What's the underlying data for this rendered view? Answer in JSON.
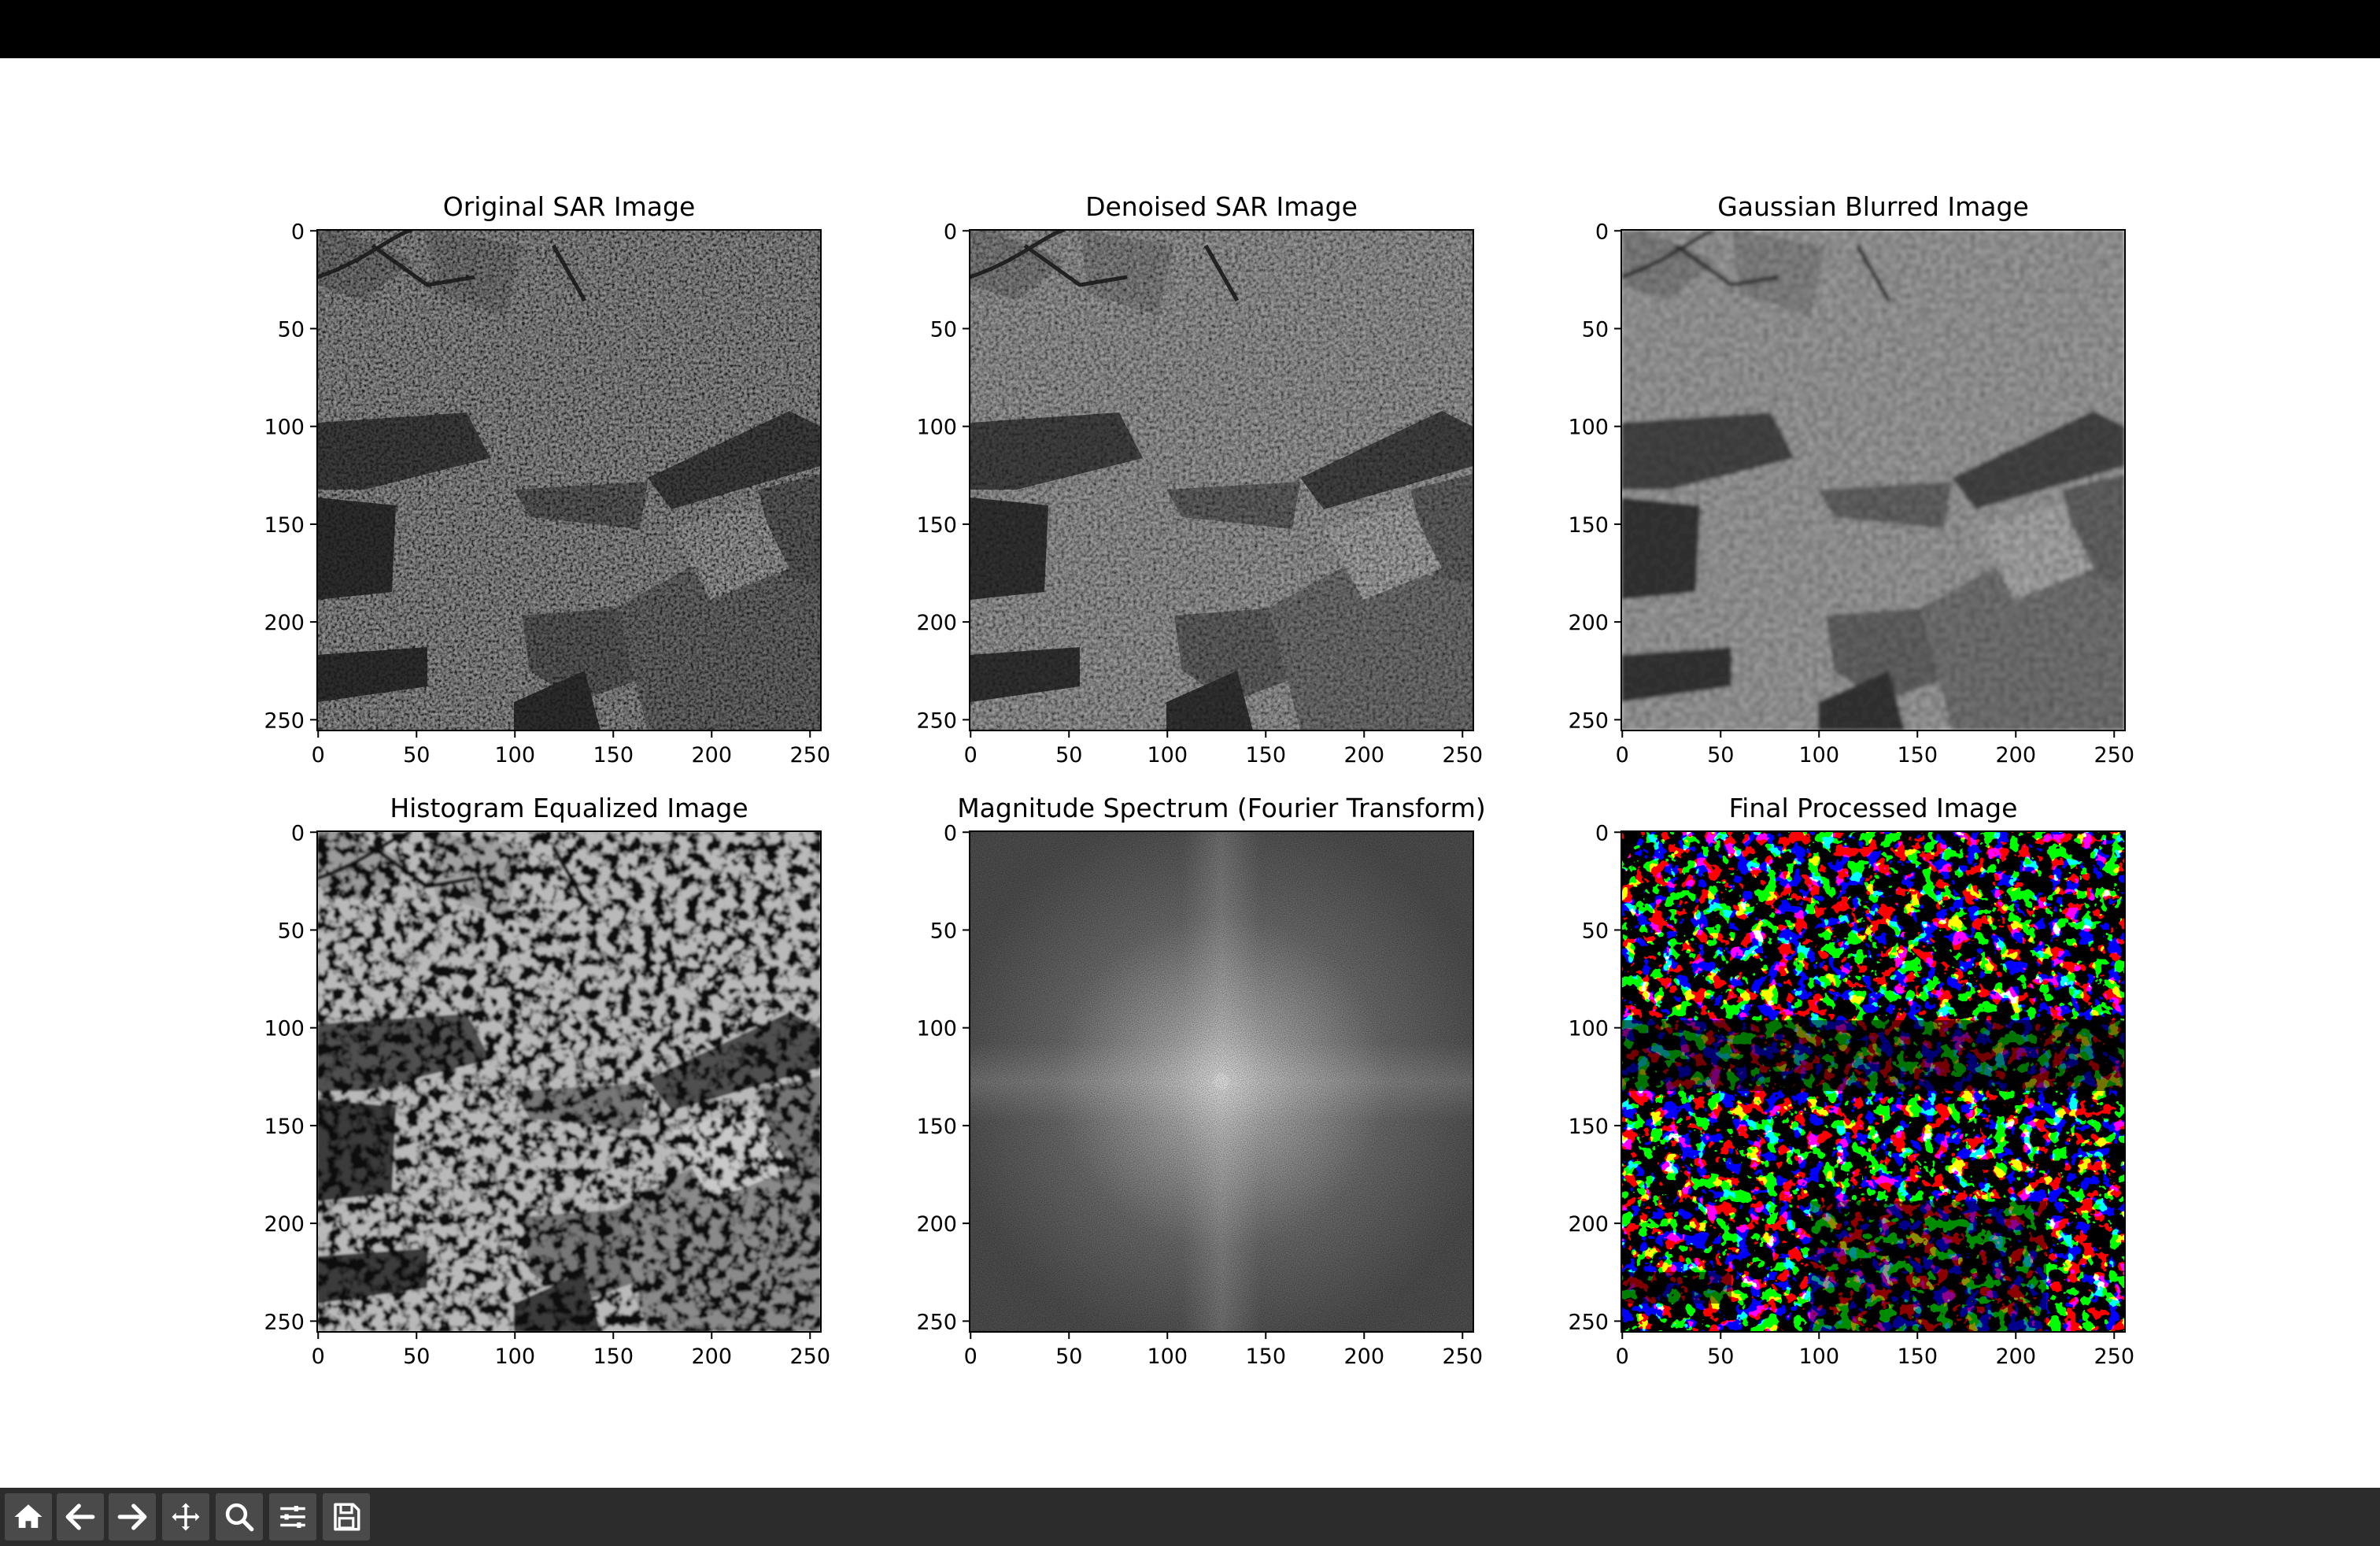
{
  "window": {
    "background": "#ffffff",
    "titlebar_color": "#000000",
    "toolbar_color": "#2c2c2c"
  },
  "toolbar": {
    "buttons": [
      {
        "name": "home-button",
        "icon": "home-icon",
        "tooltip": "Reset original view"
      },
      {
        "name": "back-button",
        "icon": "arrow-left-icon",
        "tooltip": "Back to previous view"
      },
      {
        "name": "forward-button",
        "icon": "arrow-right-icon",
        "tooltip": "Forward to next view"
      },
      {
        "name": "pan-button",
        "icon": "move-icon",
        "tooltip": "Pan axes"
      },
      {
        "name": "zoom-button",
        "icon": "magnifier-icon",
        "tooltip": "Zoom to rectangle"
      },
      {
        "name": "configure-button",
        "icon": "sliders-icon",
        "tooltip": "Configure subplots"
      },
      {
        "name": "save-button",
        "icon": "floppy-disk-icon",
        "tooltip": "Save the figure"
      }
    ]
  },
  "figure": {
    "subplots": [
      {
        "title": "Original SAR Image",
        "image_kind": "sar-original"
      },
      {
        "title": "Denoised SAR Image",
        "image_kind": "sar-denoised"
      },
      {
        "title": "Gaussian Blurred Image",
        "image_kind": "sar-blurred"
      },
      {
        "title": "Histogram Equalized Image",
        "image_kind": "sar-equalized"
      },
      {
        "title": "Magnitude Spectrum (Fourier Transform)",
        "image_kind": "fft-spectrum"
      },
      {
        "title": "Final Processed Image",
        "image_kind": "binary-threshold"
      }
    ],
    "x_ticks": [
      "0",
      "50",
      "100",
      "150",
      "200",
      "250"
    ],
    "y_ticks": [
      "0",
      "50",
      "100",
      "150",
      "200",
      "250"
    ],
    "image_extent": [
      0,
      256
    ],
    "colormap": "gray"
  }
}
